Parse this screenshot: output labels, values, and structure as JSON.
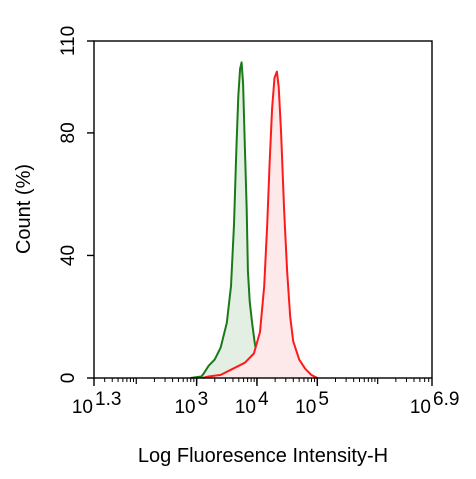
{
  "chart_data": {
    "type": "area",
    "title": "",
    "xlabel": "Log Fluoresence Intensity-H",
    "ylabel": "Count  (%)",
    "x_scale": "log",
    "xlim": [
      1.3,
      6.9
    ],
    "ylim": [
      0,
      110
    ],
    "x_ticks": [
      {
        "base": "10",
        "exp": "1.3",
        "value": 1.3
      },
      {
        "base": "10",
        "exp": "3",
        "value": 3
      },
      {
        "base": "10",
        "exp": "4",
        "value": 4
      },
      {
        "base": "10",
        "exp": "5",
        "value": 5
      },
      {
        "base": "10",
        "exp": "6.9",
        "value": 6.9
      }
    ],
    "y_ticks": [
      "0",
      "40",
      "80",
      "110"
    ],
    "grid": false,
    "legend": "none",
    "series": [
      {
        "color": "#1a7a1a",
        "fill": "#e3efe3",
        "points": [
          [
            2.9,
            0
          ],
          [
            3.08,
            0.5
          ],
          [
            3.12,
            1.5
          ],
          [
            3.2,
            4
          ],
          [
            3.3,
            6
          ],
          [
            3.4,
            10
          ],
          [
            3.5,
            18
          ],
          [
            3.57,
            30
          ],
          [
            3.62,
            50
          ],
          [
            3.66,
            75
          ],
          [
            3.69,
            92
          ],
          [
            3.72,
            101
          ],
          [
            3.745,
            103
          ],
          [
            3.77,
            96
          ],
          [
            3.8,
            75
          ],
          [
            3.83,
            55
          ],
          [
            3.85,
            35
          ],
          [
            3.88,
            25
          ],
          [
            3.92,
            18
          ],
          [
            3.96,
            12
          ],
          [
            4.0,
            7
          ],
          [
            4.05,
            3
          ],
          [
            4.1,
            1
          ],
          [
            4.15,
            0
          ]
        ]
      },
      {
        "color": "#ff1a1a",
        "fill": "#fde8ea",
        "points": [
          [
            3.1,
            0
          ],
          [
            3.2,
            0.5
          ],
          [
            3.4,
            1
          ],
          [
            3.6,
            3
          ],
          [
            3.8,
            5
          ],
          [
            3.95,
            8
          ],
          [
            4.05,
            15
          ],
          [
            4.12,
            30
          ],
          [
            4.17,
            50
          ],
          [
            4.21,
            70
          ],
          [
            4.25,
            88
          ],
          [
            4.29,
            98
          ],
          [
            4.33,
            100
          ],
          [
            4.36,
            95
          ],
          [
            4.4,
            80
          ],
          [
            4.45,
            55
          ],
          [
            4.5,
            35
          ],
          [
            4.55,
            20
          ],
          [
            4.6,
            12
          ],
          [
            4.7,
            6
          ],
          [
            4.8,
            3
          ],
          [
            4.9,
            1
          ],
          [
            5.0,
            0
          ]
        ]
      }
    ]
  }
}
